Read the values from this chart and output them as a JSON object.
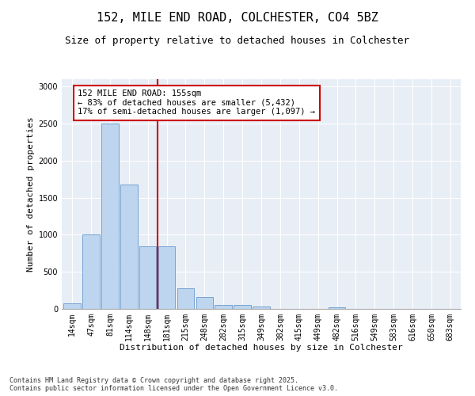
{
  "title1": "152, MILE END ROAD, COLCHESTER, CO4 5BZ",
  "title2": "Size of property relative to detached houses in Colchester",
  "xlabel": "Distribution of detached houses by size in Colchester",
  "ylabel": "Number of detached properties",
  "categories": [
    "14sqm",
    "47sqm",
    "81sqm",
    "114sqm",
    "148sqm",
    "181sqm",
    "215sqm",
    "248sqm",
    "282sqm",
    "315sqm",
    "349sqm",
    "382sqm",
    "415sqm",
    "449sqm",
    "482sqm",
    "516sqm",
    "549sqm",
    "583sqm",
    "616sqm",
    "650sqm",
    "683sqm"
  ],
  "values": [
    75,
    1000,
    2500,
    1680,
    840,
    840,
    280,
    160,
    55,
    55,
    30,
    0,
    0,
    0,
    25,
    0,
    0,
    0,
    0,
    0,
    0
  ],
  "bar_color": "#bdd5ee",
  "bar_edge_color": "#6699cc",
  "vline_x": 4.5,
  "vline_color": "#cc0000",
  "annotation_text": "152 MILE END ROAD: 155sqm\n← 83% of detached houses are smaller (5,432)\n17% of semi-detached houses are larger (1,097) →",
  "annotation_box_color": "#ffffff",
  "annotation_box_edgecolor": "#cc0000",
  "ylim": [
    0,
    3100
  ],
  "yticks": [
    0,
    500,
    1000,
    1500,
    2000,
    2500,
    3000
  ],
  "background_color": "#e8eef5",
  "footer_text": "Contains HM Land Registry data © Crown copyright and database right 2025.\nContains public sector information licensed under the Open Government Licence v3.0.",
  "title_fontsize": 11,
  "subtitle_fontsize": 9,
  "axis_fontsize": 8,
  "tick_fontsize": 7,
  "annot_fontsize": 7.5
}
